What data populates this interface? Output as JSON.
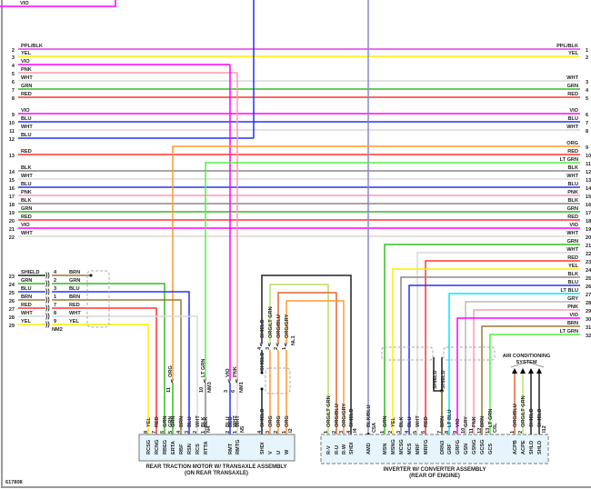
{
  "diagram_id": "617808",
  "top_wire": {
    "label": "VIO",
    "color": "#ff00ff"
  },
  "colors": {
    "VIO": "#ff00ff",
    "PPL/BLK": "#e040e0",
    "YEL": "#ffee00",
    "PNK": "#ff9ab0",
    "WHT": "#d8d8d8",
    "GRN": "#33bb22",
    "RED": "#ff3333",
    "BLU": "#2233ff",
    "ORG": "#ff9933",
    "LT GRN": "#55ee44",
    "BLK": "#888888",
    "BRN": "#9a7a30",
    "LT BLU": "#00e5ff",
    "GRY": "#bbbbbb",
    "SHIELD": "#222222",
    "BLK/BLU": "#8888cc",
    "ORG/LT GRN": "#bbdd66",
    "ORG/BLU": "#dd6633",
    "ORG/GRY": "#ff9933",
    "box_fill": "#e6f4fb"
  },
  "harness_left": [
    {
      "pin": "2",
      "label": "PPL/BLK"
    },
    {
      "pin": "3",
      "label": "YEL"
    },
    {
      "pin": "4",
      "label": "VIO"
    },
    {
      "pin": "5",
      "label": "PNK"
    },
    {
      "pin": "6",
      "label": "WHT"
    },
    {
      "pin": "7",
      "label": "GRN"
    },
    {
      "pin": "8",
      "label": "RED"
    },
    {
      "pin": "9",
      "label": "VIO"
    },
    {
      "pin": "10",
      "label": "BLU"
    },
    {
      "pin": "11",
      "label": "WHT"
    },
    {
      "pin": "12",
      "label": "BLU"
    },
    {
      "pin": "13",
      "label": "RED"
    },
    {
      "pin": "14",
      "label": "BLK"
    },
    {
      "pin": "15",
      "label": "WHT"
    },
    {
      "pin": "16",
      "label": "BLU"
    },
    {
      "pin": "17",
      "label": "PNK"
    },
    {
      "pin": "18",
      "label": "BLK"
    },
    {
      "pin": "19",
      "label": "GRN"
    },
    {
      "pin": "20",
      "label": "RED"
    },
    {
      "pin": "21",
      "label": "VIO"
    },
    {
      "pin": "22",
      "label": "WHT"
    }
  ],
  "harness_right": [
    {
      "pin": "1",
      "label": "PPL/BLK"
    },
    {
      "pin": "2",
      "label": "YEL"
    },
    {
      "pin": "3",
      "label": "WHT"
    },
    {
      "pin": "4",
      "label": "GRN"
    },
    {
      "pin": "5",
      "label": "RED"
    },
    {
      "pin": "6",
      "label": "VIO"
    },
    {
      "pin": "7",
      "label": "BLU"
    },
    {
      "pin": "8",
      "label": "WHT"
    },
    {
      "pin": "9",
      "label": "ORG"
    },
    {
      "pin": "10",
      "label": "RED"
    },
    {
      "pin": "11",
      "label": "LT GRN"
    },
    {
      "pin": "12",
      "label": "BLK"
    },
    {
      "pin": "13",
      "label": "WHT"
    },
    {
      "pin": "14",
      "label": "BLU"
    },
    {
      "pin": "15",
      "label": "PNK"
    },
    {
      "pin": "16",
      "label": "BLK"
    },
    {
      "pin": "17",
      "label": "GRN"
    },
    {
      "pin": "18",
      "label": "RED"
    },
    {
      "pin": "19",
      "label": "VIO"
    },
    {
      "pin": "20",
      "label": "WHT"
    },
    {
      "pin": "21",
      "label": "GRN"
    },
    {
      "pin": "22",
      "label": "WHT"
    },
    {
      "pin": "23",
      "label": "RED"
    },
    {
      "pin": "24",
      "label": "YEL"
    },
    {
      "pin": "25",
      "label": "BLK"
    },
    {
      "pin": "26",
      "label": "BLU"
    },
    {
      "pin": "27",
      "label": "LT BLU"
    },
    {
      "pin": "28",
      "label": "GRY"
    },
    {
      "pin": "29",
      "label": "PNK"
    },
    {
      "pin": "30",
      "label": "VIO"
    },
    {
      "pin": "31",
      "label": "BRN"
    },
    {
      "pin": "32",
      "label": "LT GRN"
    }
  ],
  "connector_nm2": {
    "id": "NM2",
    "rows": [
      {
        "pin": "23",
        "label": "SHIELD",
        "cpin": "4",
        "clabel": "BRN"
      },
      {
        "pin": "24",
        "label": "GRN",
        "cpin": "2",
        "clabel": "GRN"
      },
      {
        "pin": "25",
        "label": "BLU",
        "cpin": "3",
        "clabel": "BLU"
      },
      {
        "pin": "26",
        "label": "BRN",
        "cpin": "1",
        "clabel": "BRN"
      },
      {
        "pin": "27",
        "label": "RED",
        "cpin": "7",
        "clabel": "RED"
      },
      {
        "pin": "28",
        "label": "WHT",
        "cpin": "8",
        "clabel": "WHT"
      },
      {
        "pin": "29",
        "label": "YEL",
        "cpin": "9",
        "clabel": "YEL"
      }
    ]
  },
  "inline_connectors": [
    {
      "id": "NM3",
      "pin": "11",
      "upper": "ORG",
      "lower": "GRN"
    },
    {
      "id": "NM3",
      "pin": "10",
      "upper": "LT GRN",
      "lower": "BLK"
    },
    {
      "id": "NM1",
      "pin": "3",
      "upper": "VIO",
      "lower": "BLU"
    },
    {
      "id": "NM1",
      "pin": "6",
      "upper": "PNK",
      "lower": "WHT"
    }
  ],
  "connector_nl1": {
    "id": "NL1",
    "pins": [
      {
        "pin": "4",
        "upper": "SHIELD",
        "lower": "SHIELD"
      },
      {
        "pin": "3",
        "upper": "ORG/LT GRN",
        "lower": "ORG"
      },
      {
        "pin": "2",
        "upper": "ORG/BLU",
        "lower": "ORG"
      },
      {
        "pin": "1",
        "upper": "ORG/GRY",
        "lower": "ORG"
      }
    ],
    "mid_label": "SHIELD"
  },
  "motor": {
    "title": "REAR TRACTION MOTOR W/ TRANSAXLE ASSEMBLY",
    "subtitle": "(ON REAR TRANSAXLE)",
    "pins": [
      {
        "num": "8",
        "wire": "YEL",
        "term": "RCSG"
      },
      {
        "num": "7",
        "wire": "RED",
        "term": "RCNG"
      },
      {
        "num": "6",
        "wire": "GRN",
        "term": "RBEG"
      },
      {
        "num": "5",
        "wire": "GRN",
        "term": "ERTA"
      },
      {
        "num": "4",
        "wire": "BRN",
        "term": "RBF"
      },
      {
        "num": "3",
        "wire": "BLU",
        "term": "RSN"
      },
      {
        "num": "2",
        "wire": "WHT",
        "term": "RCS"
      },
      {
        "num": "1",
        "wire": "BLK",
        "term": "RTTA"
      },
      {
        "num": "2",
        "wire": "BLU",
        "term": "RMT"
      },
      {
        "num": "1",
        "wire": "WHT",
        "term": "RMTG"
      },
      {
        "num": "4",
        "wire": "SHIELD",
        "term": "SHDI"
      },
      {
        "num": "3",
        "wire": "ORG",
        "term": "V"
      },
      {
        "num": "2",
        "wire": "ORG",
        "term": "U"
      },
      {
        "num": "1",
        "wire": "ORG",
        "term": "W"
      }
    ],
    "connector_ids": [
      "N4",
      "N5",
      "I2"
    ]
  },
  "inverter": {
    "title": "INVERTER W/ CONVERTER ASSEMBLY",
    "subtitle": "(REAR OF ENGINE)",
    "pins": [
      {
        "num": "1",
        "wire": "ORG/LT GRN",
        "term": "R-V"
      },
      {
        "num": "2",
        "wire": "ORG/BLU",
        "term": "R-U"
      },
      {
        "num": "3",
        "wire": "ORG/GRY",
        "term": "R-W"
      },
      {
        "num": "4",
        "wire": "SHIELD",
        "term": "SHDI"
      },
      {
        "num": "",
        "wire": "BLK/BLU",
        "term": "AMD"
      },
      {
        "num": "1",
        "wire": "GRN",
        "term": "MSN"
      },
      {
        "num": "2",
        "wire": "YEL",
        "term": "MSNG"
      },
      {
        "num": "3",
        "wire": "BLK",
        "term": "MCSG"
      },
      {
        "num": "4",
        "wire": "BLU",
        "term": "MCS"
      },
      {
        "num": "5",
        "wire": "WHT",
        "term": "MRF"
      },
      {
        "num": "6",
        "wire": "RED",
        "term": "MRFG"
      },
      {
        "num": "7",
        "wire": "BRN",
        "term": "DRN3"
      },
      {
        "num": "8",
        "wire": "LT BLU",
        "term": "GRF"
      },
      {
        "num": "9",
        "wire": "VIO",
        "term": "GRFG"
      },
      {
        "num": "10",
        "wire": "GRY",
        "term": "GSN"
      },
      {
        "num": "11",
        "wire": "PNK",
        "term": "GSNG"
      },
      {
        "num": "12",
        "wire": "BRN",
        "term": "GCSG"
      },
      {
        "num": "13",
        "wire": "LT GRN",
        "term": "GCS"
      },
      {
        "num": "1",
        "wire": "ORG/BLU",
        "term": "ACPB"
      },
      {
        "num": "2",
        "wire": "ORG/LT GRN",
        "term": "ACPE"
      },
      {
        "num": "",
        "wire": "SHIELD",
        "term": "SHLD"
      },
      {
        "num": "",
        "wire": "SHIELD",
        "term": "SHLD"
      }
    ],
    "connector_ids": [
      "I4",
      "C5A",
      "C6L",
      "I12"
    ],
    "shield_labels": [
      "SHIELD",
      "SHIELD"
    ]
  },
  "ac_system": {
    "line1": "AIR CONDITIONING",
    "line2": "SYSTEM"
  }
}
